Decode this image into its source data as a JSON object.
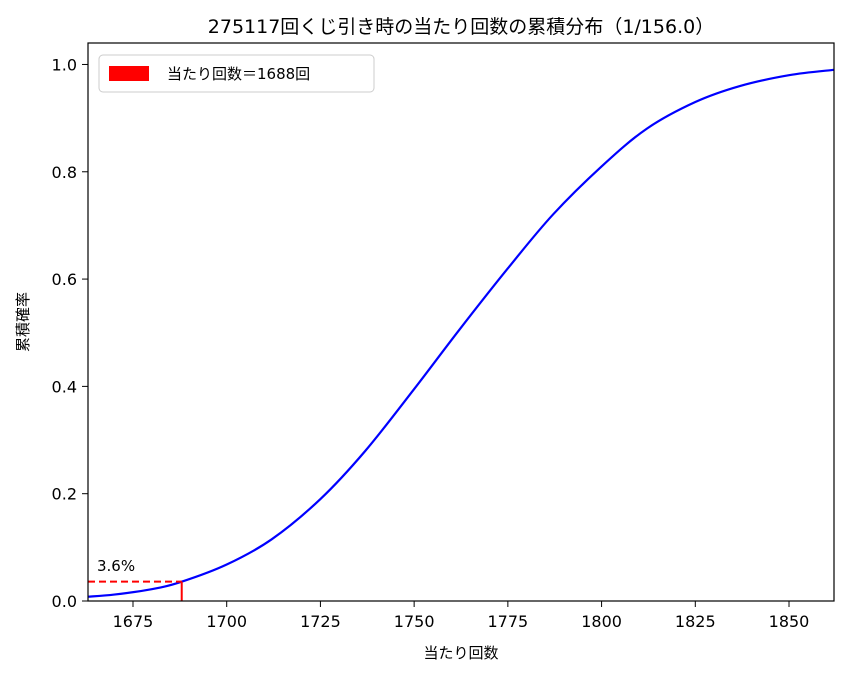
{
  "chart_data": {
    "type": "line",
    "title": "275117回くじ引き時の当たり回数の累積分布（1/156.0）",
    "xlabel": "当たり回数",
    "ylabel": "累積確率",
    "xlim": [
      1663,
      1862
    ],
    "ylim": [
      0.0,
      1.04
    ],
    "x_ticks": [
      1675,
      1700,
      1725,
      1750,
      1775,
      1800,
      1825,
      1850
    ],
    "y_ticks": [
      0.0,
      0.2,
      0.4,
      0.6,
      0.8,
      1.0
    ],
    "x_tick_labels": [
      "1675",
      "1700",
      "1725",
      "1750",
      "1775",
      "1800",
      "1825",
      "1850"
    ],
    "y_tick_labels": [
      "0.0",
      "0.2",
      "0.4",
      "0.6",
      "0.8",
      "1.0"
    ],
    "grid": false,
    "legend_position": "top-left",
    "series": [
      {
        "color": "#0000ff",
        "x": [
          1663,
          1670,
          1680,
          1688,
          1700,
          1712,
          1725,
          1737,
          1750,
          1762,
          1775,
          1787,
          1800,
          1812,
          1825,
          1837,
          1850,
          1862
        ],
        "y": [
          0.008,
          0.012,
          0.022,
          0.036,
          0.068,
          0.115,
          0.19,
          0.28,
          0.395,
          0.505,
          0.62,
          0.72,
          0.81,
          0.88,
          0.93,
          0.96,
          0.98,
          0.99
        ]
      }
    ],
    "marker": {
      "x": 1688,
      "y": 0.036,
      "color": "#ff0000",
      "label": "3.6%",
      "legend": "当たり回数＝1688回"
    }
  }
}
